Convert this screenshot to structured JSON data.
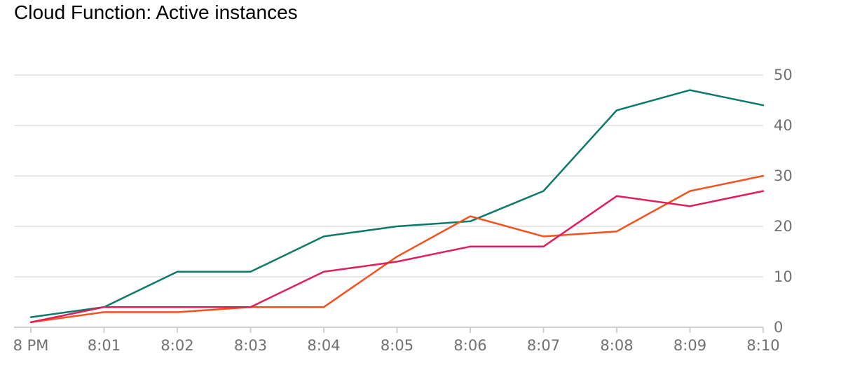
{
  "chart_data": {
    "type": "line",
    "title": "Cloud Function: Active instances",
    "xlabel": "",
    "ylabel": "",
    "categories": [
      "8 PM",
      "8:01",
      "8:02",
      "8:03",
      "8:04",
      "8:05",
      "8:06",
      "8:07",
      "8:08",
      "8:09",
      "8:10"
    ],
    "y_ticks": [
      "0",
      "10",
      "20",
      "30",
      "40",
      "50"
    ],
    "ylim": [
      0,
      50
    ],
    "y_axis_side": "right",
    "grid": true,
    "legend": "none",
    "series": [
      {
        "color": "#0b7a6a",
        "values": [
          2,
          4,
          11,
          11,
          18,
          20,
          21,
          27,
          43,
          47,
          44
        ]
      },
      {
        "color": "#f4511e",
        "values": [
          1,
          3,
          3,
          4,
          4,
          14,
          22,
          18,
          19,
          27,
          30
        ]
      },
      {
        "color": "#e01e5a",
        "values": [
          1,
          4,
          4,
          4,
          11,
          13,
          16,
          16,
          26,
          24,
          27
        ]
      }
    ]
  }
}
